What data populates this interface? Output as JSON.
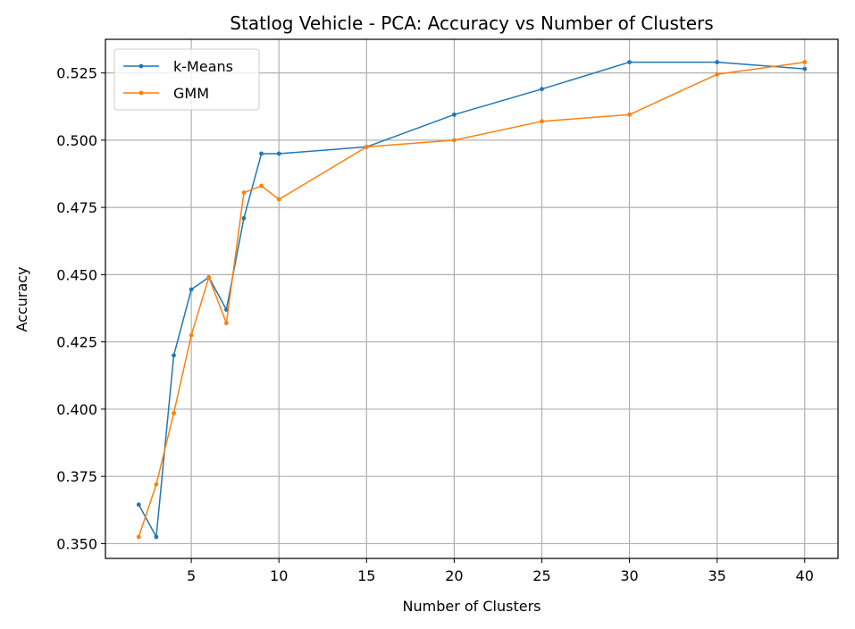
{
  "chart_data": {
    "type": "line",
    "title": "Statlog Vehicle - PCA: Accuracy vs Number of Clusters",
    "xlabel": "Number of Clusters",
    "ylabel": "Accuracy",
    "xlim": [
      0.1,
      41.9
    ],
    "ylim": [
      0.3445,
      0.5375
    ],
    "xticks": [
      5,
      10,
      15,
      20,
      25,
      30,
      35,
      40
    ],
    "yticks": [
      0.35,
      0.375,
      0.4,
      0.425,
      0.45,
      0.475,
      0.5,
      0.525
    ],
    "ytick_labels": [
      "0.350",
      "0.375",
      "0.400",
      "0.425",
      "0.450",
      "0.475",
      "0.500",
      "0.525"
    ],
    "grid": true,
    "legend_position": "top-left",
    "x": [
      2,
      3,
      4,
      5,
      6,
      7,
      8,
      9,
      10,
      15,
      20,
      25,
      30,
      35,
      40
    ],
    "series": [
      {
        "name": "k-Means",
        "color": "#1f77b4",
        "values": [
          0.3645,
          0.3525,
          0.42,
          0.4445,
          0.449,
          0.437,
          0.471,
          0.495,
          0.495,
          0.4975,
          0.5095,
          0.519,
          0.529,
          0.529,
          0.5265
        ]
      },
      {
        "name": "GMM",
        "color": "#ff7f0e",
        "values": [
          0.3525,
          0.372,
          0.3985,
          0.4275,
          0.449,
          0.432,
          0.4805,
          0.483,
          0.478,
          0.4975,
          0.5,
          0.507,
          0.5095,
          0.5245,
          0.529
        ]
      }
    ]
  }
}
